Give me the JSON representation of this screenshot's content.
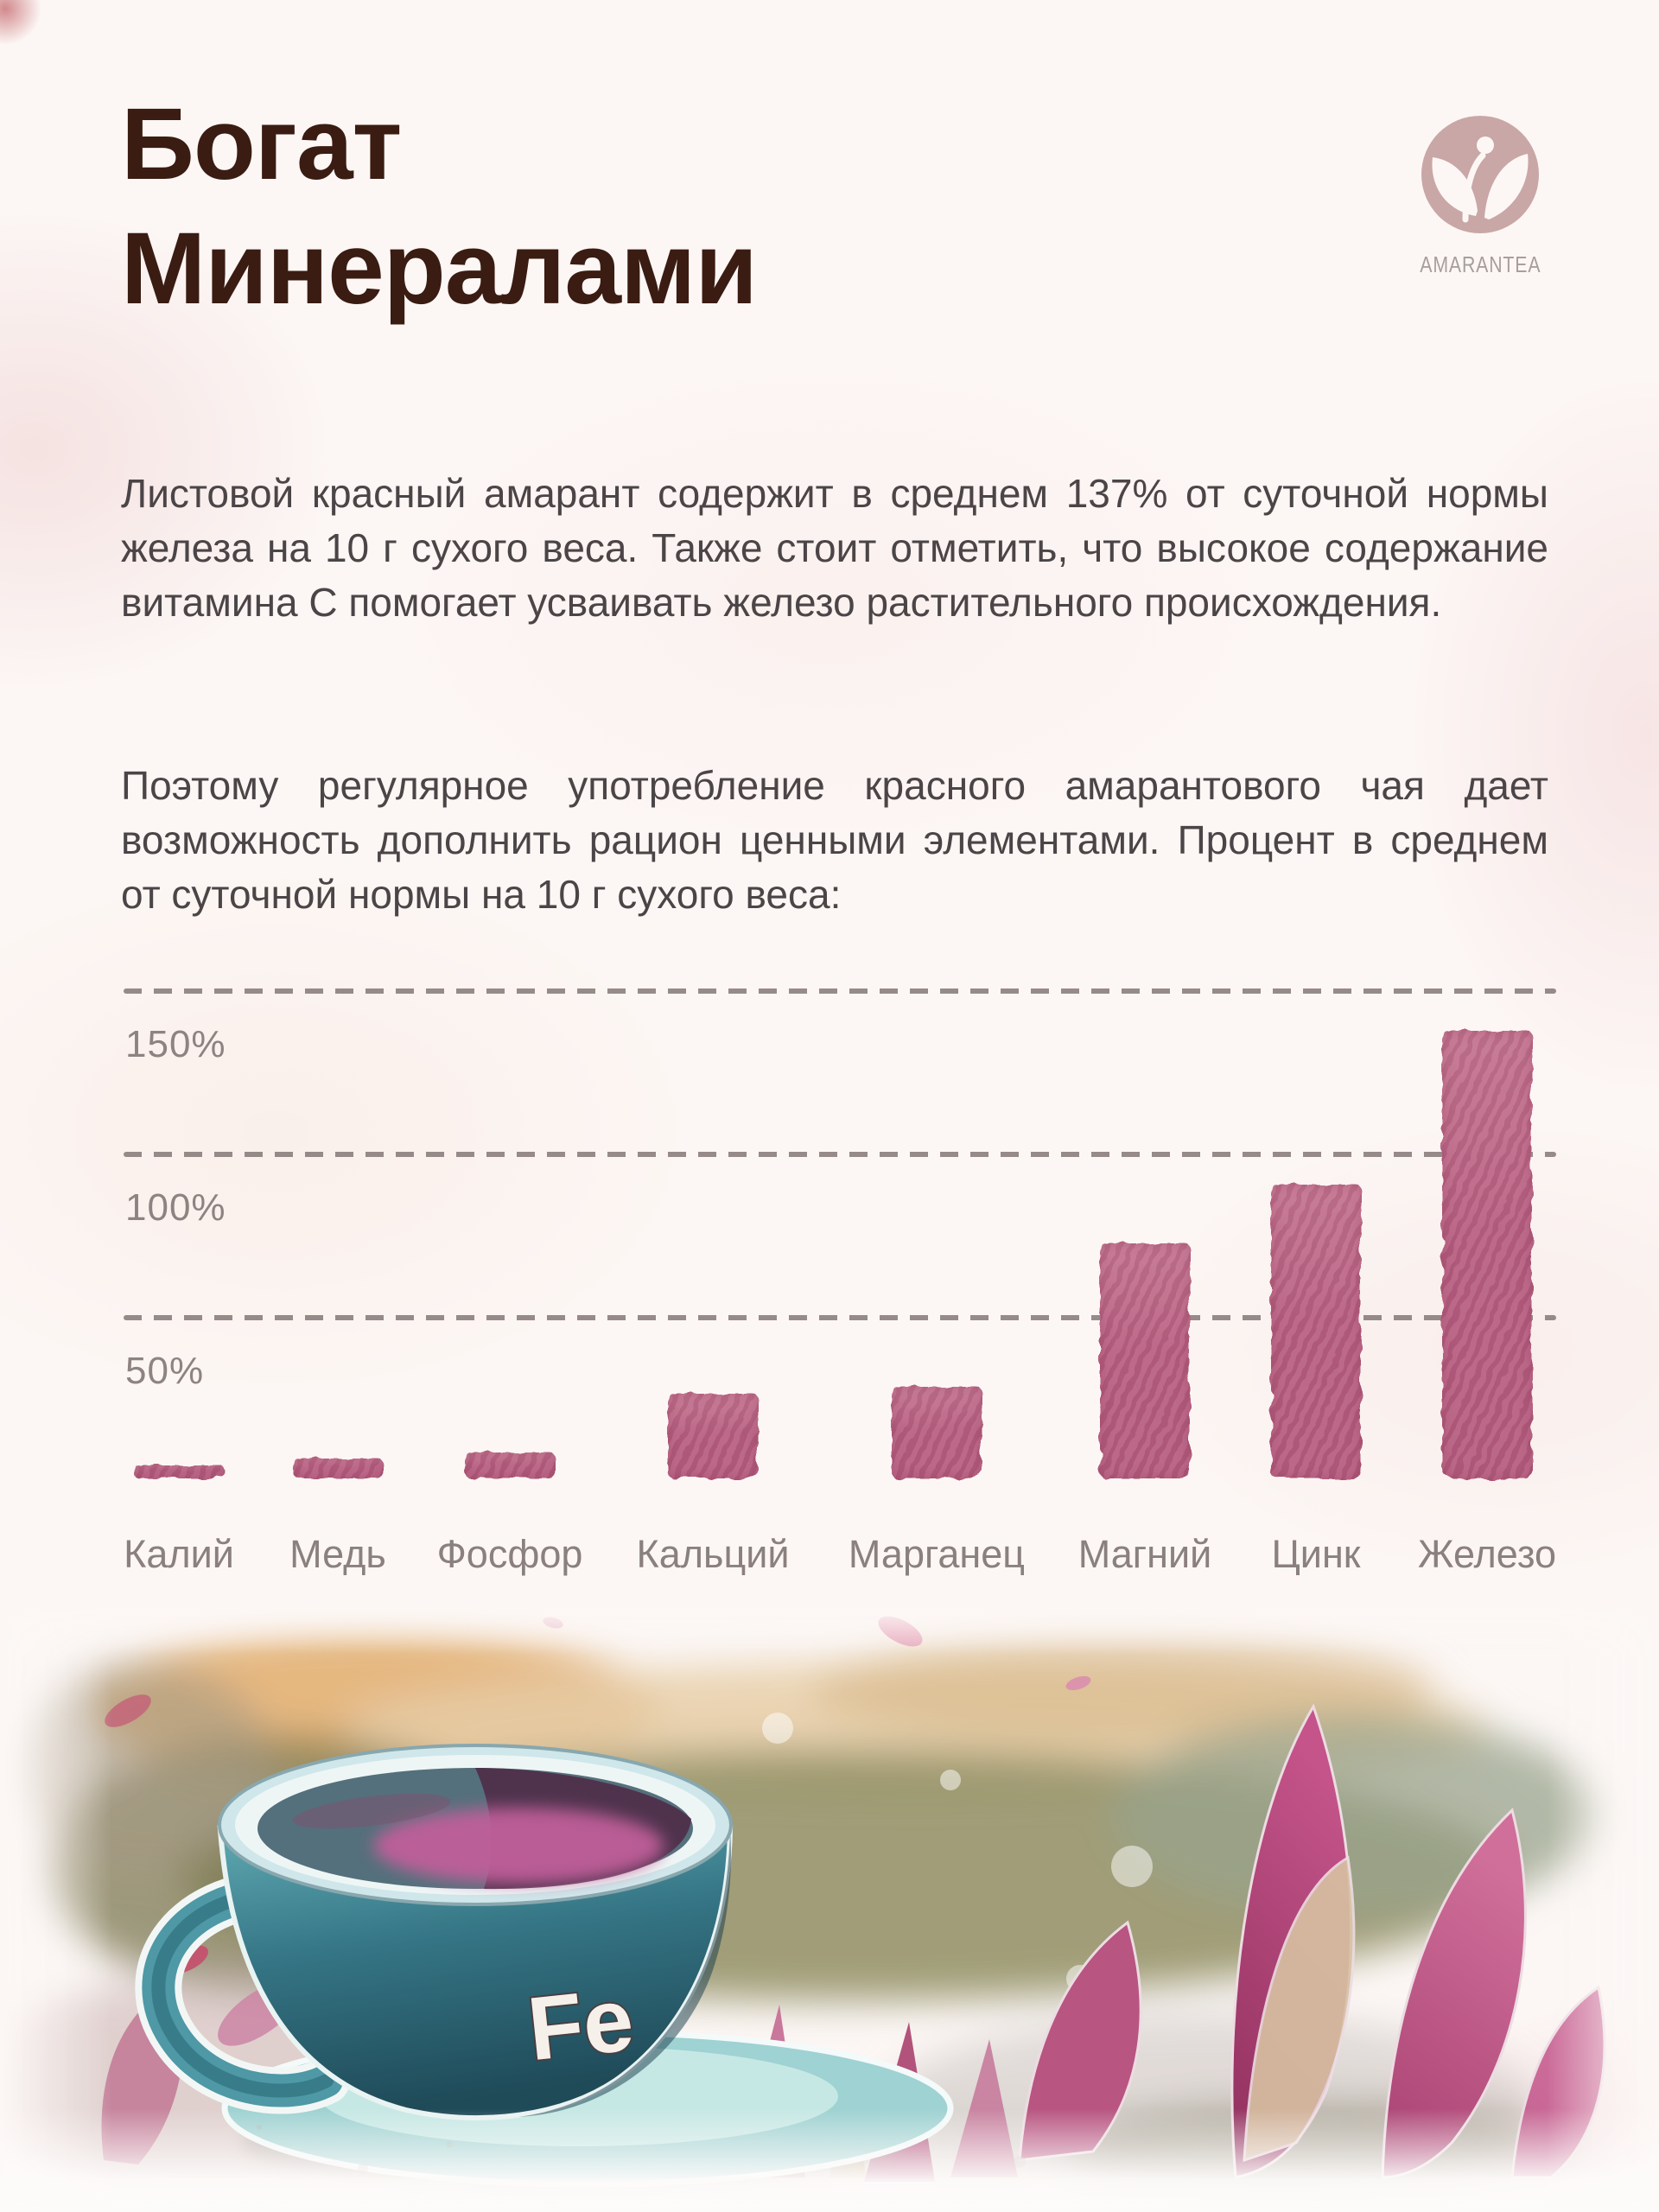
{
  "header": {
    "title_line1": "Богат",
    "title_line2": "Минералами"
  },
  "logo": {
    "brand": "Amarantea"
  },
  "paragraphs": {
    "p1": "Листовой красный амарант содержит в среднем 137% от суточной нормы железа на 10 г сухого веса. Также стоит отметить, что высокое содержание витамина С помогает усваивать железо растительного происхождения.",
    "p2": "Поэтому регулярное употребление красного амарантового чая дает возможность дополнить рацион ценными элементами. Процент в среднем от суточной нормы на 10 г сухого веса:"
  },
  "chart_data": {
    "type": "bar",
    "title": "Процент в среднем от суточной нормы на 10 г сухого веса",
    "categories": [
      "Калий",
      "Медь",
      "Фосфор",
      "Кальций",
      "Марганец",
      "Магний",
      "Цинк",
      "Железо"
    ],
    "values": [
      4,
      6,
      8,
      26,
      28,
      72,
      90,
      137
    ],
    "unit": "%",
    "xlabel": "",
    "ylabel": "",
    "y_ticks": [
      {
        "label": "150%",
        "value": 150
      },
      {
        "label": "100%",
        "value": 100
      },
      {
        "label": "50%",
        "value": 50
      }
    ],
    "ylim": [
      0,
      165
    ],
    "grid": "dashed-horizontal",
    "legend_position": "none",
    "bar_color": "#b95f81"
  },
  "illustration": {
    "cup_label": "Fe"
  },
  "colors": {
    "title": "#3a1c12",
    "body_text": "#4b4547",
    "axis_text": "#8d8381",
    "gridline": "#8b7f7d",
    "bar": "#b95f81",
    "logo_mark": "#c9a7a6",
    "background": "#fcf7f5"
  }
}
